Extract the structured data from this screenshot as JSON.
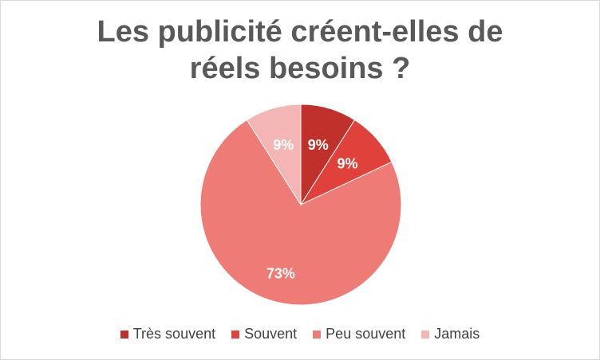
{
  "chart_data": {
    "type": "pie",
    "title_lines": [
      "Les publicité créent-elles de",
      "réels besoins ?"
    ],
    "categories": [
      "Très souvent",
      "Souvent",
      "Peu souvent",
      "Jamais"
    ],
    "values": [
      9,
      9,
      73,
      9
    ],
    "labels": [
      "9%",
      "9%",
      "73%",
      "9%"
    ],
    "colors": [
      "#c0312b",
      "#e0413a",
      "#ef7b77",
      "#f4b6b4"
    ],
    "label_color": "#ffffff",
    "legend_position": "bottom"
  }
}
